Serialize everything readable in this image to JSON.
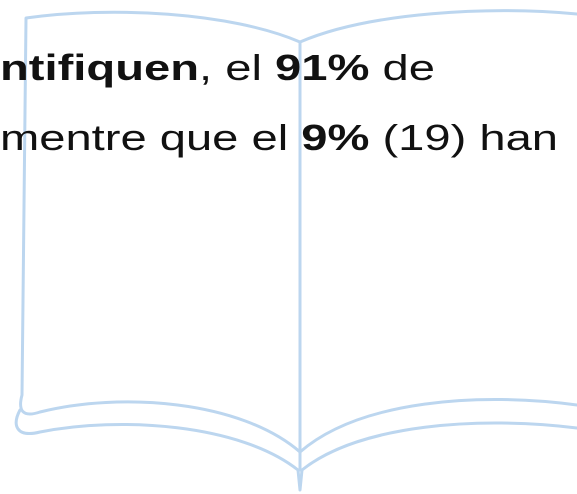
{
  "lines": [
    {
      "segments": [
        {
          "text": "ntifiquen",
          "bold": true
        },
        {
          "text": ", el ",
          "bold": false
        },
        {
          "text": "91%",
          "bold": true
        },
        {
          "text": " de",
          "bold": false
        }
      ]
    },
    {
      "segments": [
        {
          "text": "mentre que el ",
          "bold": false
        },
        {
          "text": "9%",
          "bold": true
        },
        {
          "text": " (19) han",
          "bold": false
        }
      ]
    }
  ]
}
